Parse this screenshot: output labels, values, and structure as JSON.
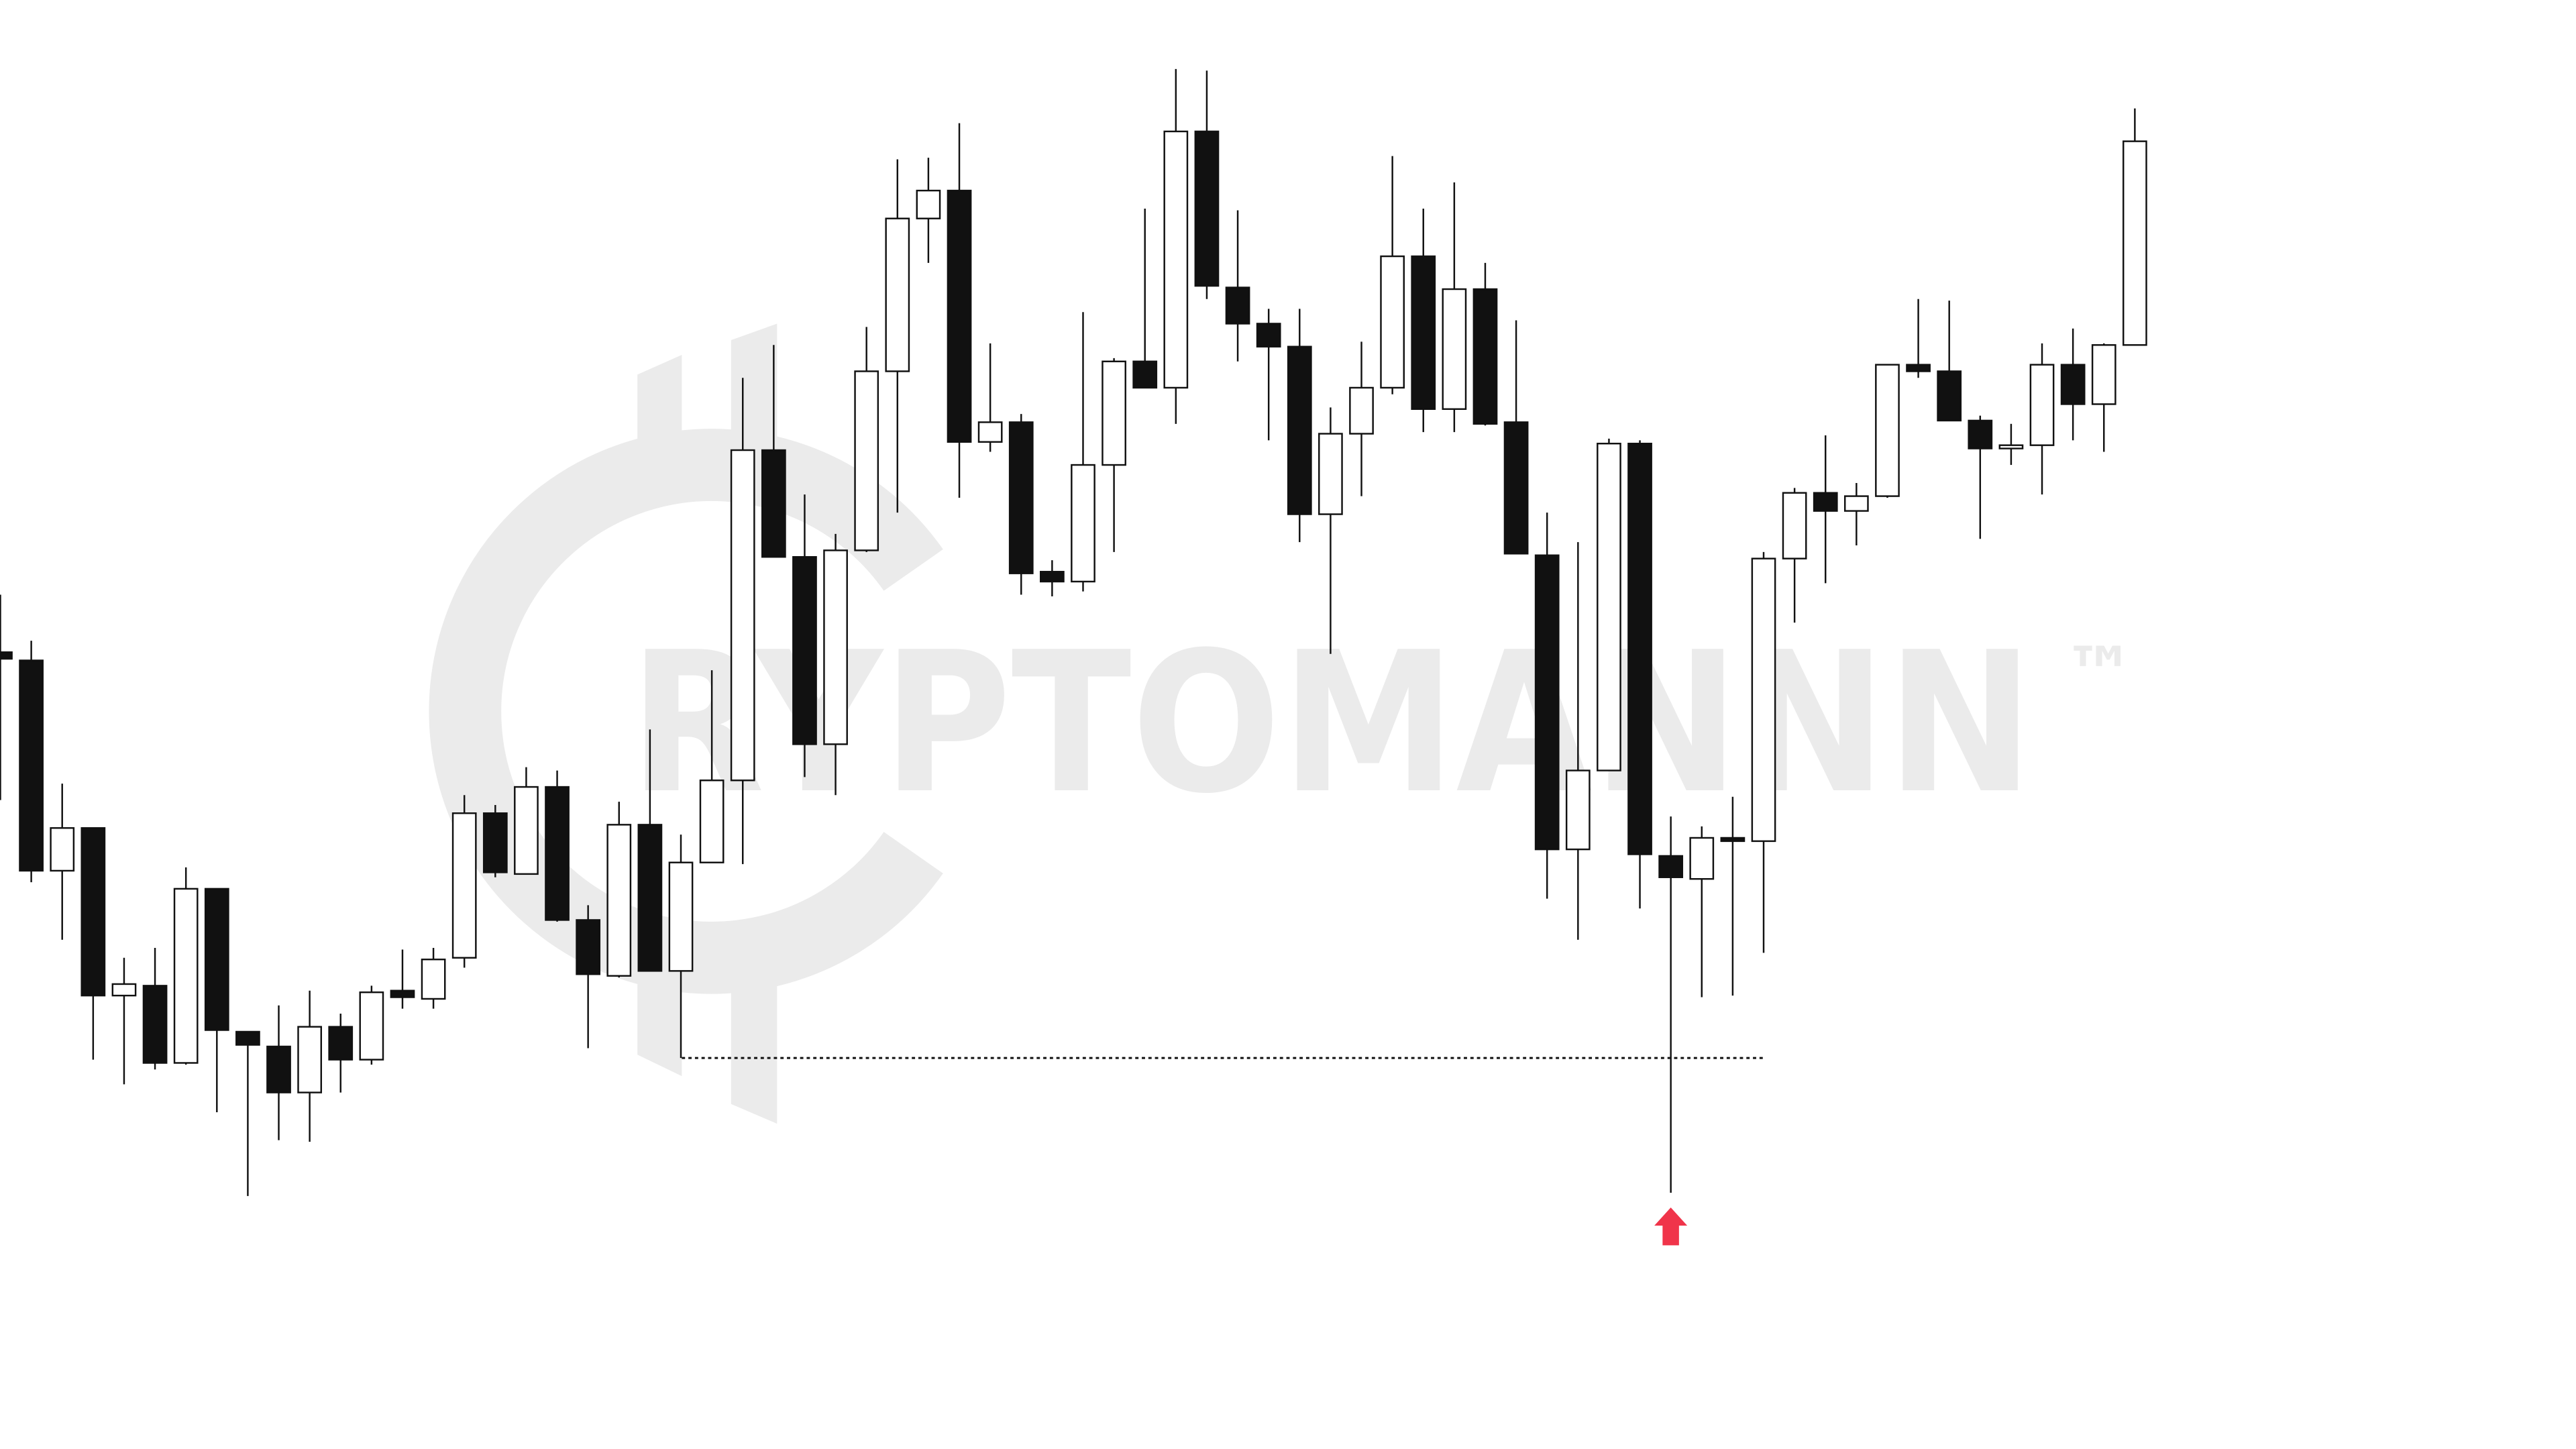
{
  "chart_data": {
    "type": "candlestick",
    "watermark": "RYPTOMANNN",
    "watermark_mark": "™",
    "up_color": "#ffffff",
    "down_color": "#111111",
    "outline_color": "#111111",
    "level_color": "#111111",
    "marker_color": "#f0344a",
    "ylim": [
      0,
      882
    ],
    "support_level": 238,
    "open": [
      485,
      480,
      352,
      378,
      276,
      282,
      235,
      341,
      254,
      245,
      217,
      257,
      237,
      279,
      274,
      299,
      387,
      350,
      403,
      322,
      288,
      380,
      291,
      357,
      407,
      608,
      543,
      429,
      547,
      656,
      749,
      766,
      613,
      625,
      534,
      528,
      599,
      662,
      646,
      802,
      707,
      685,
      671,
      569,
      618,
      646,
      726,
      633,
      706,
      625,
      544,
      365,
      413,
      612,
      361,
      347,
      372,
      370,
      542,
      582,
      571,
      580,
      660,
      656,
      626,
      609,
      611,
      660,
      636,
      672
    ],
    "high": [
      520,
      492,
      405,
      378,
      299,
      305,
      354,
      341,
      254,
      270,
      279,
      265,
      282,
      304,
      305,
      398,
      392,
      415,
      413,
      331,
      394,
      438,
      374,
      474,
      652,
      672,
      581,
      557,
      683,
      785,
      786,
      807,
      673,
      630,
      541,
      692,
      664,
      755,
      840,
      839,
      754,
      694,
      694,
      634,
      674,
      787,
      755,
      771,
      722,
      687,
      570,
      552,
      615,
      614,
      385,
      379,
      397,
      546,
      585,
      617,
      588,
      660,
      700,
      699,
      629,
      624,
      673,
      682,
      673,
      816
    ],
    "low": [
      395,
      345,
      310,
      237,
      222,
      231,
      234,
      205,
      154,
      188,
      187,
      217,
      234,
      268,
      268,
      293,
      348,
      350,
      321,
      244,
      287,
      291,
      238,
      357,
      356,
      543,
      409,
      398,
      546,
      570,
      722,
      579,
      607,
      520,
      519,
      522,
      546,
      646,
      624,
      700,
      662,
      614,
      552,
      484,
      580,
      642,
      619,
      619,
      623,
      545,
      335,
      310,
      413,
      329,
      156,
      275,
      276,
      302,
      503,
      527,
      550,
      579,
      652,
      626,
      554,
      599,
      581,
      614,
      607,
      672
    ],
    "close": [
      481,
      352,
      378,
      276,
      283,
      235,
      341,
      255,
      246,
      217,
      257,
      237,
      278,
      275,
      298,
      387,
      351,
      403,
      322,
      289,
      380,
      291,
      357,
      407,
      608,
      543,
      429,
      547,
      656,
      749,
      766,
      613,
      625,
      533,
      528,
      599,
      662,
      646,
      802,
      708,
      685,
      671,
      569,
      618,
      646,
      726,
      633,
      706,
      624,
      545,
      365,
      413,
      612,
      362,
      348,
      372,
      370,
      542,
      582,
      571,
      580,
      660,
      656,
      626,
      609,
      611,
      660,
      636,
      672,
      796
    ]
  }
}
